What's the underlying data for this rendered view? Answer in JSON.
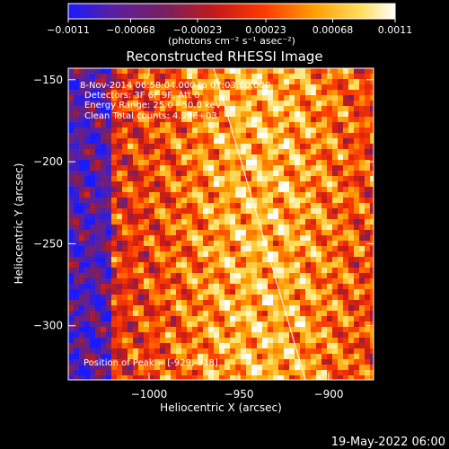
{
  "chart_data": {
    "type": "heatmap",
    "title": "Reconstructed RHESSI Image",
    "xlabel": "Heliocentric X (arcsec)",
    "ylabel": "Heliocentric Y (arcsec)",
    "xlim": [
      -1045,
      -875
    ],
    "ylim": [
      -333,
      -143
    ],
    "x_ticks": [
      -1000,
      -950,
      -900
    ],
    "y_ticks": [
      -150,
      -200,
      -250,
      -300
    ],
    "colorbar": {
      "ticks": [
        "-0.0011",
        "-0.00068",
        "-0.00023",
        "0.00023",
        "0.00068",
        "0.0011"
      ],
      "range": [
        -0.0011,
        0.0011
      ],
      "unit_label": "(photons cm⁻² s⁻¹ asec⁻²)",
      "colors": [
        "#1a1aff",
        "#5a20a0",
        "#7a1f5e",
        "#c41a1a",
        "#ff3a00",
        "#ff9c00",
        "#ffe060",
        "#ffffff"
      ]
    },
    "annotations": {
      "time_range": "8-Nov-2014 06:58:04.000 to 07:03:00.000",
      "detectors": "Detectors: 3F 6F 9F, Att 0",
      "energy_range": "Energy Range: 25.0 - 50.0 keV",
      "clean_counts": "Clean    Total counts: 4.95E+03",
      "peak": "Position of Peak = [-929,-318]"
    },
    "limb_line": {
      "start": [
        -964,
        -143
      ],
      "end": [
        -913,
        -333
      ]
    },
    "peak_position": [
      -929,
      -318
    ]
  },
  "footer": {
    "timestamp": "19-May-2022 06:00"
  }
}
